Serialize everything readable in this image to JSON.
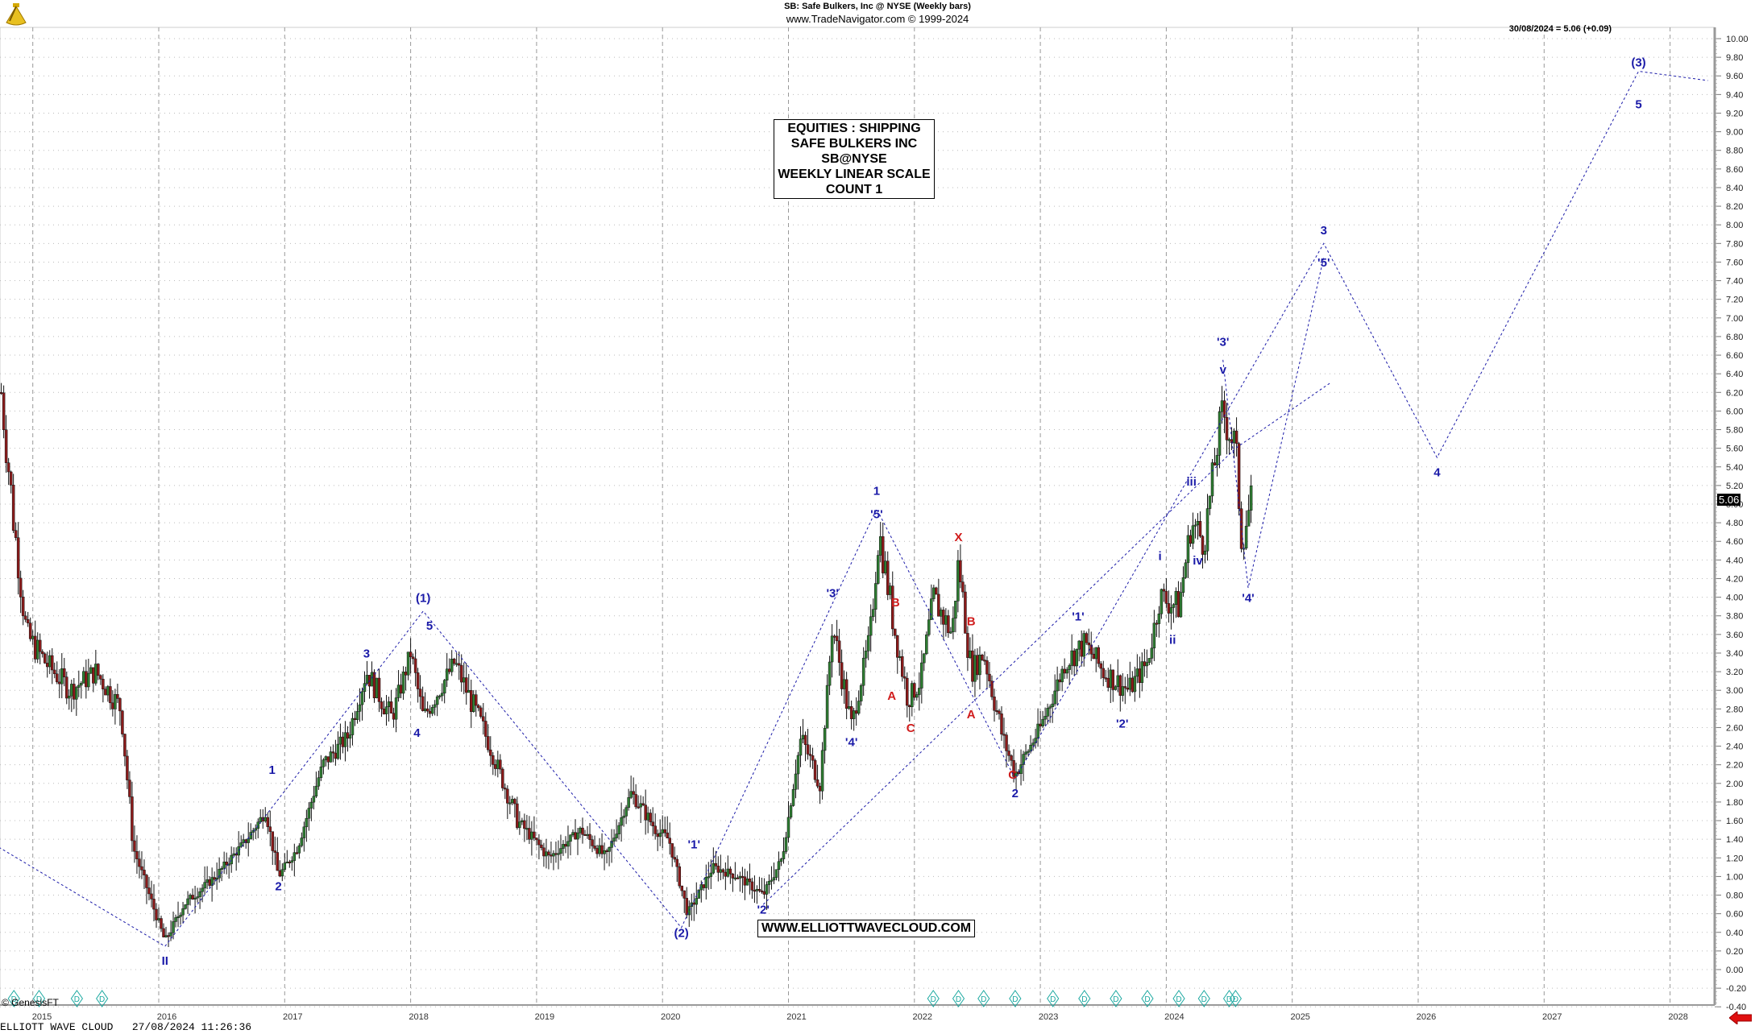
{
  "header": {
    "title": "SB:  Safe Bulkers, Inc @ NYSE  (Weekly bars)",
    "subtitle": "www.TradeNavigator.com © 1999-2024",
    "last_value": "30/08/2024 = 5.06 (+0.09)"
  },
  "info_box": {
    "lines": [
      "EQUITIES : SHIPPING",
      "SAFE BULKERS INC",
      "SB@NYSE",
      "WEEKLY LINEAR SCALE",
      "COUNT 1"
    ]
  },
  "watermark_url": "WWW.ELLIOTTWAVECLOUD.COM",
  "copyright": "© GenesisFT",
  "footer": "ELLIOTT WAVE CLOUD   27/08/2024 11:26:36",
  "price_badge": "5.06",
  "colors": {
    "up_candle": "#2e7d32",
    "down_candle": "#8b1a1a",
    "wave_blue": "#1a1aa8",
    "wave_red": "#d01c1c",
    "grid": "#b0b0b0",
    "event_marker": "#1aa8a0"
  },
  "chart_data": {
    "type": "candlestick",
    "title": "SB: Safe Bulkers, Inc @ NYSE (Weekly bars)",
    "xlabel": "",
    "ylabel": "",
    "ylim": [
      -0.4,
      10.0
    ],
    "y_ticks": [
      "10.00",
      "9.80",
      "9.60",
      "9.40",
      "9.20",
      "9.00",
      "8.80",
      "8.60",
      "8.40",
      "8.20",
      "8.00",
      "7.80",
      "7.60",
      "7.40",
      "7.20",
      "7.00",
      "6.80",
      "6.60",
      "6.40",
      "6.20",
      "6.00",
      "5.80",
      "5.60",
      "5.40",
      "5.20",
      "5.00",
      "4.80",
      "4.60",
      "4.40",
      "4.20",
      "4.00",
      "3.80",
      "3.60",
      "3.40",
      "3.20",
      "3.00",
      "2.80",
      "2.60",
      "2.40",
      "2.20",
      "2.00",
      "1.80",
      "1.60",
      "1.40",
      "1.20",
      "1.00",
      "0.80",
      "0.60",
      "0.40",
      "0.20",
      "0.00",
      "-0.20",
      "-0.40"
    ],
    "x_ticks": [
      "2015",
      "2016",
      "2017",
      "2018",
      "2019",
      "2020",
      "2021",
      "2022",
      "2023",
      "2024",
      "2025",
      "2026",
      "2027",
      "2028"
    ],
    "grid": true,
    "last_close": 5.06,
    "last_change": 0.09,
    "last_date": "30/08/2024",
    "price_path": [
      {
        "t": 2014.75,
        "v": 6.2
      },
      {
        "t": 2014.85,
        "v": 4.8
      },
      {
        "t": 2014.95,
        "v": 3.6
      },
      {
        "t": 2015.1,
        "v": 3.3
      },
      {
        "t": 2015.3,
        "v": 3.0
      },
      {
        "t": 2015.5,
        "v": 3.2
      },
      {
        "t": 2015.7,
        "v": 2.8
      },
      {
        "t": 2015.8,
        "v": 1.3
      },
      {
        "t": 2015.95,
        "v": 0.7
      },
      {
        "t": 2016.05,
        "v": 0.3
      },
      {
        "t": 2016.2,
        "v": 0.7
      },
      {
        "t": 2016.45,
        "v": 1.0
      },
      {
        "t": 2016.7,
        "v": 1.4
      },
      {
        "t": 2016.85,
        "v": 1.7
      },
      {
        "t": 2016.95,
        "v": 1.0
      },
      {
        "t": 2017.1,
        "v": 1.3
      },
      {
        "t": 2017.3,
        "v": 2.2
      },
      {
        "t": 2017.5,
        "v": 2.5
      },
      {
        "t": 2017.65,
        "v": 3.2
      },
      {
        "t": 2017.85,
        "v": 2.7
      },
      {
        "t": 2018.0,
        "v": 3.4
      },
      {
        "t": 2018.1,
        "v": 2.7
      },
      {
        "t": 2018.35,
        "v": 3.3
      },
      {
        "t": 2018.6,
        "v": 2.5
      },
      {
        "t": 2018.85,
        "v": 1.6
      },
      {
        "t": 2019.1,
        "v": 1.2
      },
      {
        "t": 2019.35,
        "v": 1.5
      },
      {
        "t": 2019.55,
        "v": 1.2
      },
      {
        "t": 2019.75,
        "v": 1.9
      },
      {
        "t": 2019.95,
        "v": 1.5
      },
      {
        "t": 2020.05,
        "v": 1.4
      },
      {
        "t": 2020.2,
        "v": 0.6
      },
      {
        "t": 2020.4,
        "v": 1.1
      },
      {
        "t": 2020.6,
        "v": 1.0
      },
      {
        "t": 2020.8,
        "v": 0.8
      },
      {
        "t": 2020.95,
        "v": 1.2
      },
      {
        "t": 2021.1,
        "v": 2.5
      },
      {
        "t": 2021.25,
        "v": 2.0
      },
      {
        "t": 2021.35,
        "v": 3.7
      },
      {
        "t": 2021.5,
        "v": 2.6
      },
      {
        "t": 2021.65,
        "v": 3.6
      },
      {
        "t": 2021.72,
        "v": 4.7
      },
      {
        "t": 2021.85,
        "v": 3.6
      },
      {
        "t": 2021.95,
        "v": 2.9
      },
      {
        "t": 2022.05,
        "v": 3.1
      },
      {
        "t": 2022.15,
        "v": 4.0
      },
      {
        "t": 2022.3,
        "v": 3.6
      },
      {
        "t": 2022.35,
        "v": 4.4
      },
      {
        "t": 2022.45,
        "v": 3.2
      },
      {
        "t": 2022.55,
        "v": 3.4
      },
      {
        "t": 2022.7,
        "v": 2.5
      },
      {
        "t": 2022.8,
        "v": 2.1
      },
      {
        "t": 2023.0,
        "v": 2.6
      },
      {
        "t": 2023.2,
        "v": 3.3
      },
      {
        "t": 2023.35,
        "v": 3.5
      },
      {
        "t": 2023.5,
        "v": 3.2
      },
      {
        "t": 2023.7,
        "v": 3.0
      },
      {
        "t": 2023.85,
        "v": 3.3
      },
      {
        "t": 2023.95,
        "v": 4.0
      },
      {
        "t": 2024.1,
        "v": 3.9
      },
      {
        "t": 2024.2,
        "v": 4.8
      },
      {
        "t": 2024.3,
        "v": 4.6
      },
      {
        "t": 2024.4,
        "v": 5.6
      },
      {
        "t": 2024.45,
        "v": 6.0
      },
      {
        "t": 2024.55,
        "v": 5.6
      },
      {
        "t": 2024.6,
        "v": 4.6
      },
      {
        "t": 2024.65,
        "v": 4.9
      },
      {
        "t": 2024.68,
        "v": 5.06
      }
    ],
    "wave_labels": [
      {
        "label": "II",
        "t": 2016.05,
        "v": 0.05,
        "color": "blue"
      },
      {
        "label": "1",
        "t": 2016.9,
        "v": 2.1,
        "color": "blue"
      },
      {
        "label": "2",
        "t": 2016.95,
        "v": 0.85,
        "color": "blue"
      },
      {
        "label": "3",
        "t": 2017.65,
        "v": 3.35,
        "color": "blue"
      },
      {
        "label": "4",
        "t": 2018.05,
        "v": 2.5,
        "color": "blue"
      },
      {
        "label": "5",
        "t": 2018.15,
        "v": 3.65,
        "color": "blue"
      },
      {
        "label": "(1)",
        "t": 2018.1,
        "v": 3.95,
        "color": "blue"
      },
      {
        "label": "(2)",
        "t": 2020.15,
        "v": 0.35,
        "color": "blue"
      },
      {
        "label": "'1'",
        "t": 2020.25,
        "v": 1.3,
        "color": "blue"
      },
      {
        "label": "'2'",
        "t": 2020.8,
        "v": 0.6,
        "color": "blue"
      },
      {
        "label": "'3'",
        "t": 2021.35,
        "v": 4.0,
        "color": "blue"
      },
      {
        "label": "'4'",
        "t": 2021.5,
        "v": 2.4,
        "color": "blue"
      },
      {
        "label": "'5'",
        "t": 2021.7,
        "v": 4.85,
        "color": "blue"
      },
      {
        "label": "1",
        "t": 2021.7,
        "v": 5.1,
        "color": "blue"
      },
      {
        "label": "B",
        "t": 2021.85,
        "v": 3.9,
        "color": "red"
      },
      {
        "label": "A",
        "t": 2021.82,
        "v": 2.9,
        "color": "red"
      },
      {
        "label": "C",
        "t": 2021.97,
        "v": 2.55,
        "color": "red"
      },
      {
        "label": "X",
        "t": 2022.35,
        "v": 4.6,
        "color": "red"
      },
      {
        "label": "B",
        "t": 2022.45,
        "v": 3.7,
        "color": "red"
      },
      {
        "label": "A",
        "t": 2022.45,
        "v": 2.7,
        "color": "red"
      },
      {
        "label": "C",
        "t": 2022.78,
        "v": 2.05,
        "color": "red"
      },
      {
        "label": "2",
        "t": 2022.8,
        "v": 1.85,
        "color": "blue"
      },
      {
        "label": "'1'",
        "t": 2023.3,
        "v": 3.75,
        "color": "blue"
      },
      {
        "label": "'2'",
        "t": 2023.65,
        "v": 2.6,
        "color": "blue"
      },
      {
        "label": "i",
        "t": 2023.95,
        "v": 4.4,
        "color": "blue"
      },
      {
        "label": "ii",
        "t": 2024.05,
        "v": 3.5,
        "color": "blue"
      },
      {
        "label": "iii",
        "t": 2024.2,
        "v": 5.2,
        "color": "blue"
      },
      {
        "label": "iv",
        "t": 2024.25,
        "v": 4.35,
        "color": "blue"
      },
      {
        "label": "v",
        "t": 2024.45,
        "v": 6.4,
        "color": "blue"
      },
      {
        "label": "'3'",
        "t": 2024.45,
        "v": 6.7,
        "color": "blue"
      },
      {
        "label": "'4'",
        "t": 2024.65,
        "v": 3.95,
        "color": "blue"
      },
      {
        "label": "'5'",
        "t": 2025.25,
        "v": 7.55,
        "color": "blue"
      },
      {
        "label": "3",
        "t": 2025.25,
        "v": 7.9,
        "color": "blue"
      },
      {
        "label": "4",
        "t": 2026.15,
        "v": 5.3,
        "color": "blue"
      },
      {
        "label": "5",
        "t": 2027.75,
        "v": 9.25,
        "color": "blue"
      },
      {
        "label": "(3)",
        "t": 2027.75,
        "v": 9.7,
        "color": "blue"
      }
    ],
    "projection_paths": [
      {
        "name": "major",
        "points": [
          {
            "t": 2016.05,
            "v": 0.25
          },
          {
            "t": 2018.1,
            "v": 3.85
          },
          {
            "t": 2020.15,
            "v": 0.45
          },
          {
            "t": 2021.7,
            "v": 4.95
          },
          {
            "t": 2022.8,
            "v": 2.05
          },
          {
            "t": 2025.25,
            "v": 7.8
          },
          {
            "t": 2026.15,
            "v": 5.5
          },
          {
            "t": 2027.75,
            "v": 9.65
          },
          {
            "t": 2028.3,
            "v": 9.55
          }
        ]
      },
      {
        "name": "minor-2024",
        "points": [
          {
            "t": 2024.45,
            "v": 6.55
          },
          {
            "t": 2024.65,
            "v": 4.1
          },
          {
            "t": 2025.25,
            "v": 7.65
          }
        ]
      }
    ],
    "event_markers_years": [
      2014.85,
      2015.05,
      2015.35,
      2015.55,
      2022.15,
      2022.35,
      2022.55,
      2022.8,
      2023.1,
      2023.35,
      2023.6,
      2023.85,
      2024.1,
      2024.3,
      2024.5,
      2024.55
    ]
  }
}
